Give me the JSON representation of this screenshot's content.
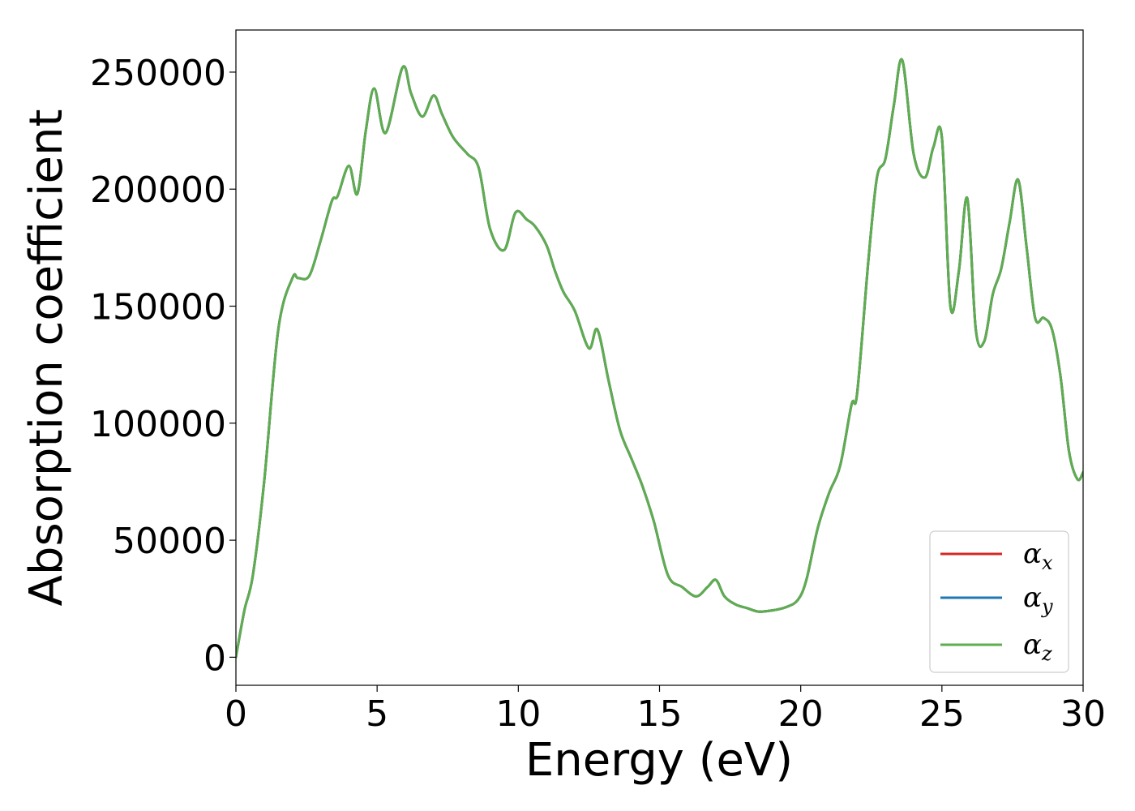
{
  "chart_data": {
    "type": "line",
    "title": "",
    "xlabel": "Energy (eV)",
    "ylabel": "Absorption coefficient",
    "xlim": [
      0,
      30
    ],
    "ylim": [
      -12000,
      268000
    ],
    "xticks": [
      0,
      5,
      10,
      15,
      20,
      25,
      30
    ],
    "xtick_labels": [
      "0",
      "5",
      "10",
      "15",
      "20",
      "25",
      "30"
    ],
    "yticks": [
      0,
      50000,
      100000,
      150000,
      200000,
      250000
    ],
    "ytick_labels": [
      "0",
      "50000",
      "100000",
      "150000",
      "200000",
      "250000"
    ],
    "grid": false,
    "legend_position": "lower-right",
    "x": [
      0,
      0.3,
      0.6,
      1,
      1.5,
      2,
      2.2,
      2.6,
      3,
      3.4,
      3.6,
      4,
      4.3,
      4.6,
      4.9,
      5.3,
      5.9,
      6.2,
      6.6,
      7,
      7.3,
      7.7,
      8.2,
      8.6,
      9,
      9.5,
      9.9,
      10.3,
      10.6,
      11,
      11.3,
      11.6,
      12,
      12.5,
      12.8,
      13.2,
      13.6,
      14,
      14.4,
      14.8,
      15.3,
      15.8,
      16.3,
      16.7,
      17,
      17.3,
      17.7,
      18.1,
      18.5,
      19,
      19.5,
      19.9,
      20.2,
      20.6,
      21,
      21.4,
      21.8,
      22,
      22.4,
      22.7,
      23,
      23.3,
      23.6,
      24,
      24.4,
      24.7,
      25,
      25.3,
      25.6,
      25.9,
      26.2,
      26.5,
      26.8,
      27.1,
      27.4,
      27.7,
      28,
      28.3,
      28.6,
      28.9,
      29.2,
      29.5,
      29.8,
      30
    ],
    "series": [
      {
        "name": "α_x",
        "color": "#d62728",
        "values": [
          0,
          20000,
          35000,
          75000,
          140000,
          162000,
          162000,
          163000,
          178000,
          195000,
          197000,
          210000,
          198000,
          225000,
          243000,
          224000,
          252000,
          241000,
          231000,
          240000,
          232000,
          222000,
          215000,
          209000,
          183000,
          174000,
          190000,
          187000,
          184000,
          176000,
          165000,
          156000,
          148000,
          132000,
          140000,
          118000,
          97000,
          85000,
          73000,
          58000,
          35000,
          30000,
          26000,
          30000,
          33000,
          26000,
          22500,
          21000,
          19500,
          20000,
          21500,
          24500,
          33000,
          55000,
          70000,
          82000,
          108000,
          113000,
          170000,
          205000,
          213000,
          236000,
          255000,
          215000,
          205000,
          218000,
          222000,
          150000,
          165000,
          196000,
          140000,
          135000,
          155000,
          166000,
          186000,
          204000,
          175000,
          145000,
          145000,
          140000,
          120000,
          88000,
          76000,
          79000
        ]
      },
      {
        "name": "α_y",
        "color": "#1f77b4",
        "values": [
          0,
          20000,
          35000,
          75000,
          140000,
          162000,
          162000,
          163000,
          178000,
          195000,
          197000,
          210000,
          198000,
          225000,
          243000,
          224000,
          252000,
          241000,
          231000,
          240000,
          232000,
          222000,
          215000,
          209000,
          183000,
          174000,
          190000,
          187000,
          184000,
          176000,
          165000,
          156000,
          148000,
          132000,
          140000,
          118000,
          97000,
          85000,
          73000,
          58000,
          35000,
          30000,
          26000,
          30000,
          33000,
          26000,
          22500,
          21000,
          19500,
          20000,
          21500,
          24500,
          33000,
          55000,
          70000,
          82000,
          108000,
          113000,
          170000,
          205000,
          213000,
          236000,
          255000,
          215000,
          205000,
          218000,
          222000,
          150000,
          165000,
          196000,
          140000,
          135000,
          155000,
          166000,
          186000,
          204000,
          175000,
          145000,
          145000,
          140000,
          120000,
          88000,
          76000,
          79000
        ]
      },
      {
        "name": "α_z",
        "color": "#5ead4f",
        "values": [
          0,
          20000,
          35000,
          75000,
          140000,
          162000,
          162000,
          163000,
          178000,
          195000,
          197000,
          210000,
          198000,
          225000,
          243000,
          224000,
          252000,
          241000,
          231000,
          240000,
          232000,
          222000,
          215000,
          209000,
          183000,
          174000,
          190000,
          187000,
          184000,
          176000,
          165000,
          156000,
          148000,
          132000,
          140000,
          118000,
          97000,
          85000,
          73000,
          58000,
          35000,
          30000,
          26000,
          30000,
          33000,
          26000,
          22500,
          21000,
          19500,
          20000,
          21500,
          24500,
          33000,
          55000,
          70000,
          82000,
          108000,
          113000,
          170000,
          205000,
          213000,
          236000,
          255000,
          215000,
          205000,
          218000,
          222000,
          150000,
          165000,
          196000,
          140000,
          135000,
          155000,
          166000,
          186000,
          204000,
          175000,
          145000,
          145000,
          140000,
          120000,
          88000,
          76000,
          79000
        ]
      }
    ]
  }
}
